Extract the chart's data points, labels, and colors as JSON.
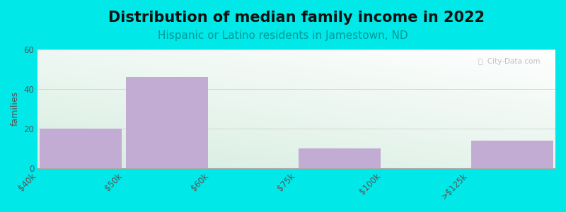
{
  "title": "Distribution of median family income in 2022",
  "subtitle": "Hispanic or Latino residents in Jamestown, ND",
  "ylabel": "families",
  "tick_labels": [
    "$40k",
    "$50k",
    "$60k",
    "$75k",
    "$100k",
    ">$125k"
  ],
  "values": [
    20,
    46,
    0,
    10,
    0,
    14
  ],
  "bar_color": "#c3acd4",
  "background_color": "#00e8e8",
  "plot_bg_color_topleft": "#d6eecf",
  "plot_bg_color_bottomright": "#f0f8f0",
  "title_fontsize": 15,
  "subtitle_fontsize": 11,
  "ylabel_fontsize": 9,
  "tick_fontsize": 8.5,
  "ylim": [
    0,
    60
  ],
  "yticks": [
    0,
    20,
    40,
    60
  ],
  "watermark": "ⓘ  City-Data.com",
  "subtitle_color": "#009999",
  "title_color": "#111111",
  "tick_label_color": "#555555",
  "grid_color": "#cccccc"
}
